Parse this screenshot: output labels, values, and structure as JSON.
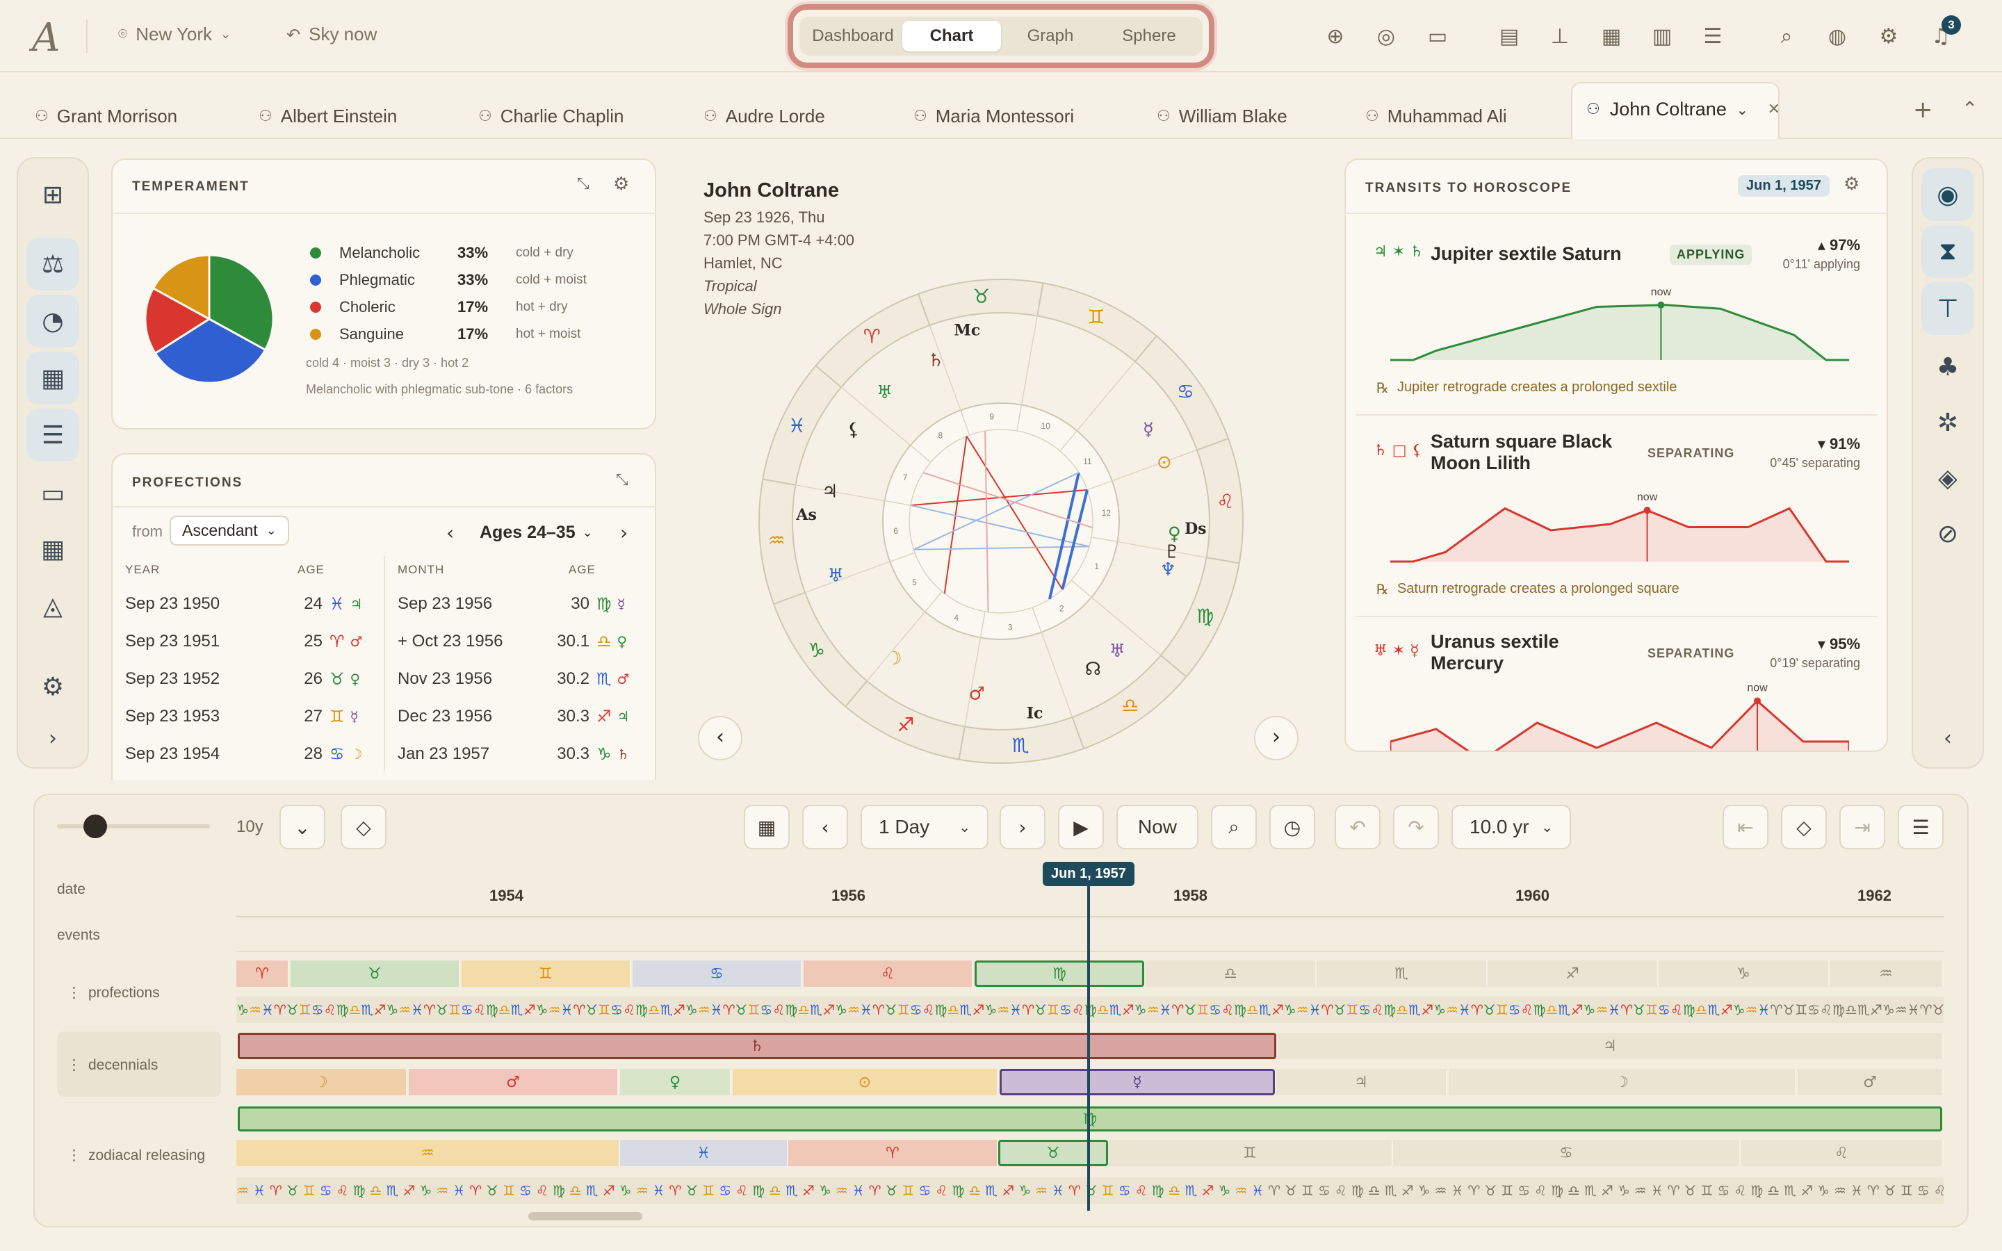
{
  "topbar": {
    "logo": "A",
    "location": "New York",
    "sky": "Sky now",
    "views": [
      "Dashboard",
      "Chart",
      "Graph",
      "Sphere"
    ],
    "active_view": "Chart",
    "notifications": "3"
  },
  "tabs": [
    "Grant Morrison",
    "Albert Einstein",
    "Charlie Chaplin",
    "Audre Lorde",
    "Maria Montessori",
    "William Blake",
    "Muhammad Ali"
  ],
  "active_tab": "John Coltrane",
  "temperament": {
    "title": "TEMPERAMENT",
    "items": [
      {
        "name": "Melancholic",
        "pct": "33%",
        "desc": "cold + dry",
        "value": 33,
        "color": "#2e8b3c"
      },
      {
        "name": "Phlegmatic",
        "pct": "33%",
        "desc": "cold + moist",
        "value": 33,
        "color": "#2f5fd0"
      },
      {
        "name": "Choleric",
        "pct": "17%",
        "desc": "hot + dry",
        "value": 17,
        "color": "#d8362e"
      },
      {
        "name": "Sanguine",
        "pct": "17%",
        "desc": "hot + moist",
        "value": 17,
        "color": "#d89414"
      }
    ],
    "counts": "cold 4 · moist 3 · dry 3 · hot 2",
    "summary": "Melancholic with phlegmatic sub-tone · 6 factors"
  },
  "profections": {
    "title": "PROFECTIONS",
    "from_label": "from",
    "from_value": "Ascendant",
    "range": "Ages 24–35",
    "year_headers": [
      "YEAR",
      "AGE"
    ],
    "month_headers": [
      "MONTH",
      "AGE"
    ],
    "years": [
      {
        "date": "Sep 23 1950",
        "age": "24",
        "sign": "♓",
        "ruler": "♃",
        "sc": "#2f5fd0",
        "rc": "#2e8b3c"
      },
      {
        "date": "Sep 23 1951",
        "age": "25",
        "sign": "♈",
        "ruler": "♂",
        "sc": "#d8362e",
        "rc": "#d8362e"
      },
      {
        "date": "Sep 23 1952",
        "age": "26",
        "sign": "♉",
        "ruler": "♀",
        "sc": "#2e8b3c",
        "rc": "#2e8b3c"
      },
      {
        "date": "Sep 23 1953",
        "age": "27",
        "sign": "♊",
        "ruler": "☿",
        "sc": "#d89414",
        "rc": "#7a4fa0"
      },
      {
        "date": "Sep 23 1954",
        "age": "28",
        "sign": "♋",
        "ruler": "☽",
        "sc": "#2f5fd0",
        "rc": "#d89414"
      }
    ],
    "months": [
      {
        "date": "Sep 23 1956",
        "age": "30",
        "sign": "♍",
        "ruler": "☿",
        "sc": "#2e8b3c",
        "rc": "#7a4fa0"
      },
      {
        "date": "+ Oct 23 1956",
        "age": "30.1",
        "sign": "♎",
        "ruler": "♀",
        "sc": "#d89414",
        "rc": "#2e8b3c"
      },
      {
        "date": "Nov 23 1956",
        "age": "30.2",
        "sign": "♏",
        "ruler": "♂",
        "sc": "#2f5fd0",
        "rc": "#d8362e"
      },
      {
        "date": "Dec 23 1956",
        "age": "30.3",
        "sign": "♐",
        "ruler": "♃",
        "sc": "#d8362e",
        "rc": "#2e8b3c"
      },
      {
        "date": "Jan 23 1957",
        "age": "30.3",
        "sign": "♑",
        "ruler": "♄",
        "sc": "#2e8b3c",
        "rc": "#8b3a2e"
      }
    ]
  },
  "chart": {
    "name": "John Coltrane",
    "lines": [
      "Sep 23 1926, Thu",
      "7:00 PM GMT-4 +4:00",
      "Hamlet, NC",
      "Tropical",
      "Whole Sign"
    ],
    "signs": [
      "♈",
      "♉",
      "♊",
      "♋",
      "♌",
      "♍",
      "♎",
      "♏",
      "♐",
      "♑",
      "♒",
      "♓"
    ],
    "sign_colors": [
      "#d8362e",
      "#2e8b3c",
      "#d89414",
      "#2f5fd0",
      "#d8362e",
      "#2e8b3c",
      "#d89414",
      "#2f5fd0",
      "#d8362e",
      "#2e8b3c",
      "#d89414",
      "#2f5fd0"
    ],
    "house_numbers": [
      "1",
      "2",
      "3",
      "4",
      "5",
      "6",
      "7",
      "8",
      "9",
      "10",
      "11",
      "12"
    ],
    "angles": {
      "asc": "As",
      "dsc": "Ds",
      "mc": "Mc",
      "ic": "Ic"
    }
  },
  "transits": {
    "title": "TRANSITS TO HOROSCOPE",
    "date": "Jun 1, 1957",
    "now_label": "now",
    "items": [
      {
        "glyphs": "♃ ✶ ♄",
        "title": "Jupiter sextile Saturn",
        "badge": "APPLYING",
        "pct": "▴ 97%",
        "sub": "0°11' applying",
        "note": "Jupiter retrograde creates a prolonged sextile",
        "color": "#2e8b3c"
      },
      {
        "glyphs": "♄ □ ⚸",
        "title": "Saturn square Black Moon Lilith",
        "badge": "SEPARATING",
        "pct": "▾ 91%",
        "sub": "0°45' separating",
        "note": "Saturn retrograde creates a prolonged square",
        "color": "#d8362e"
      },
      {
        "glyphs": "♅ ✶ ☿",
        "title": "Uranus sextile Mercury",
        "badge": "SEPARATING",
        "pct": "▾ 95%",
        "sub": "0°19' separating",
        "note": "",
        "color": "#d8362e"
      }
    ]
  },
  "timeline": {
    "zoom_label": "10y",
    "step": "1 Day",
    "now_btn": "Now",
    "span": "10.0 yr",
    "cursor_date": "Jun 1, 1957",
    "years": [
      "1954",
      "1956",
      "1958",
      "1960",
      "1962"
    ],
    "rows": [
      "date",
      "events",
      "profections",
      "decennials",
      "zodiacal releasing"
    ]
  }
}
